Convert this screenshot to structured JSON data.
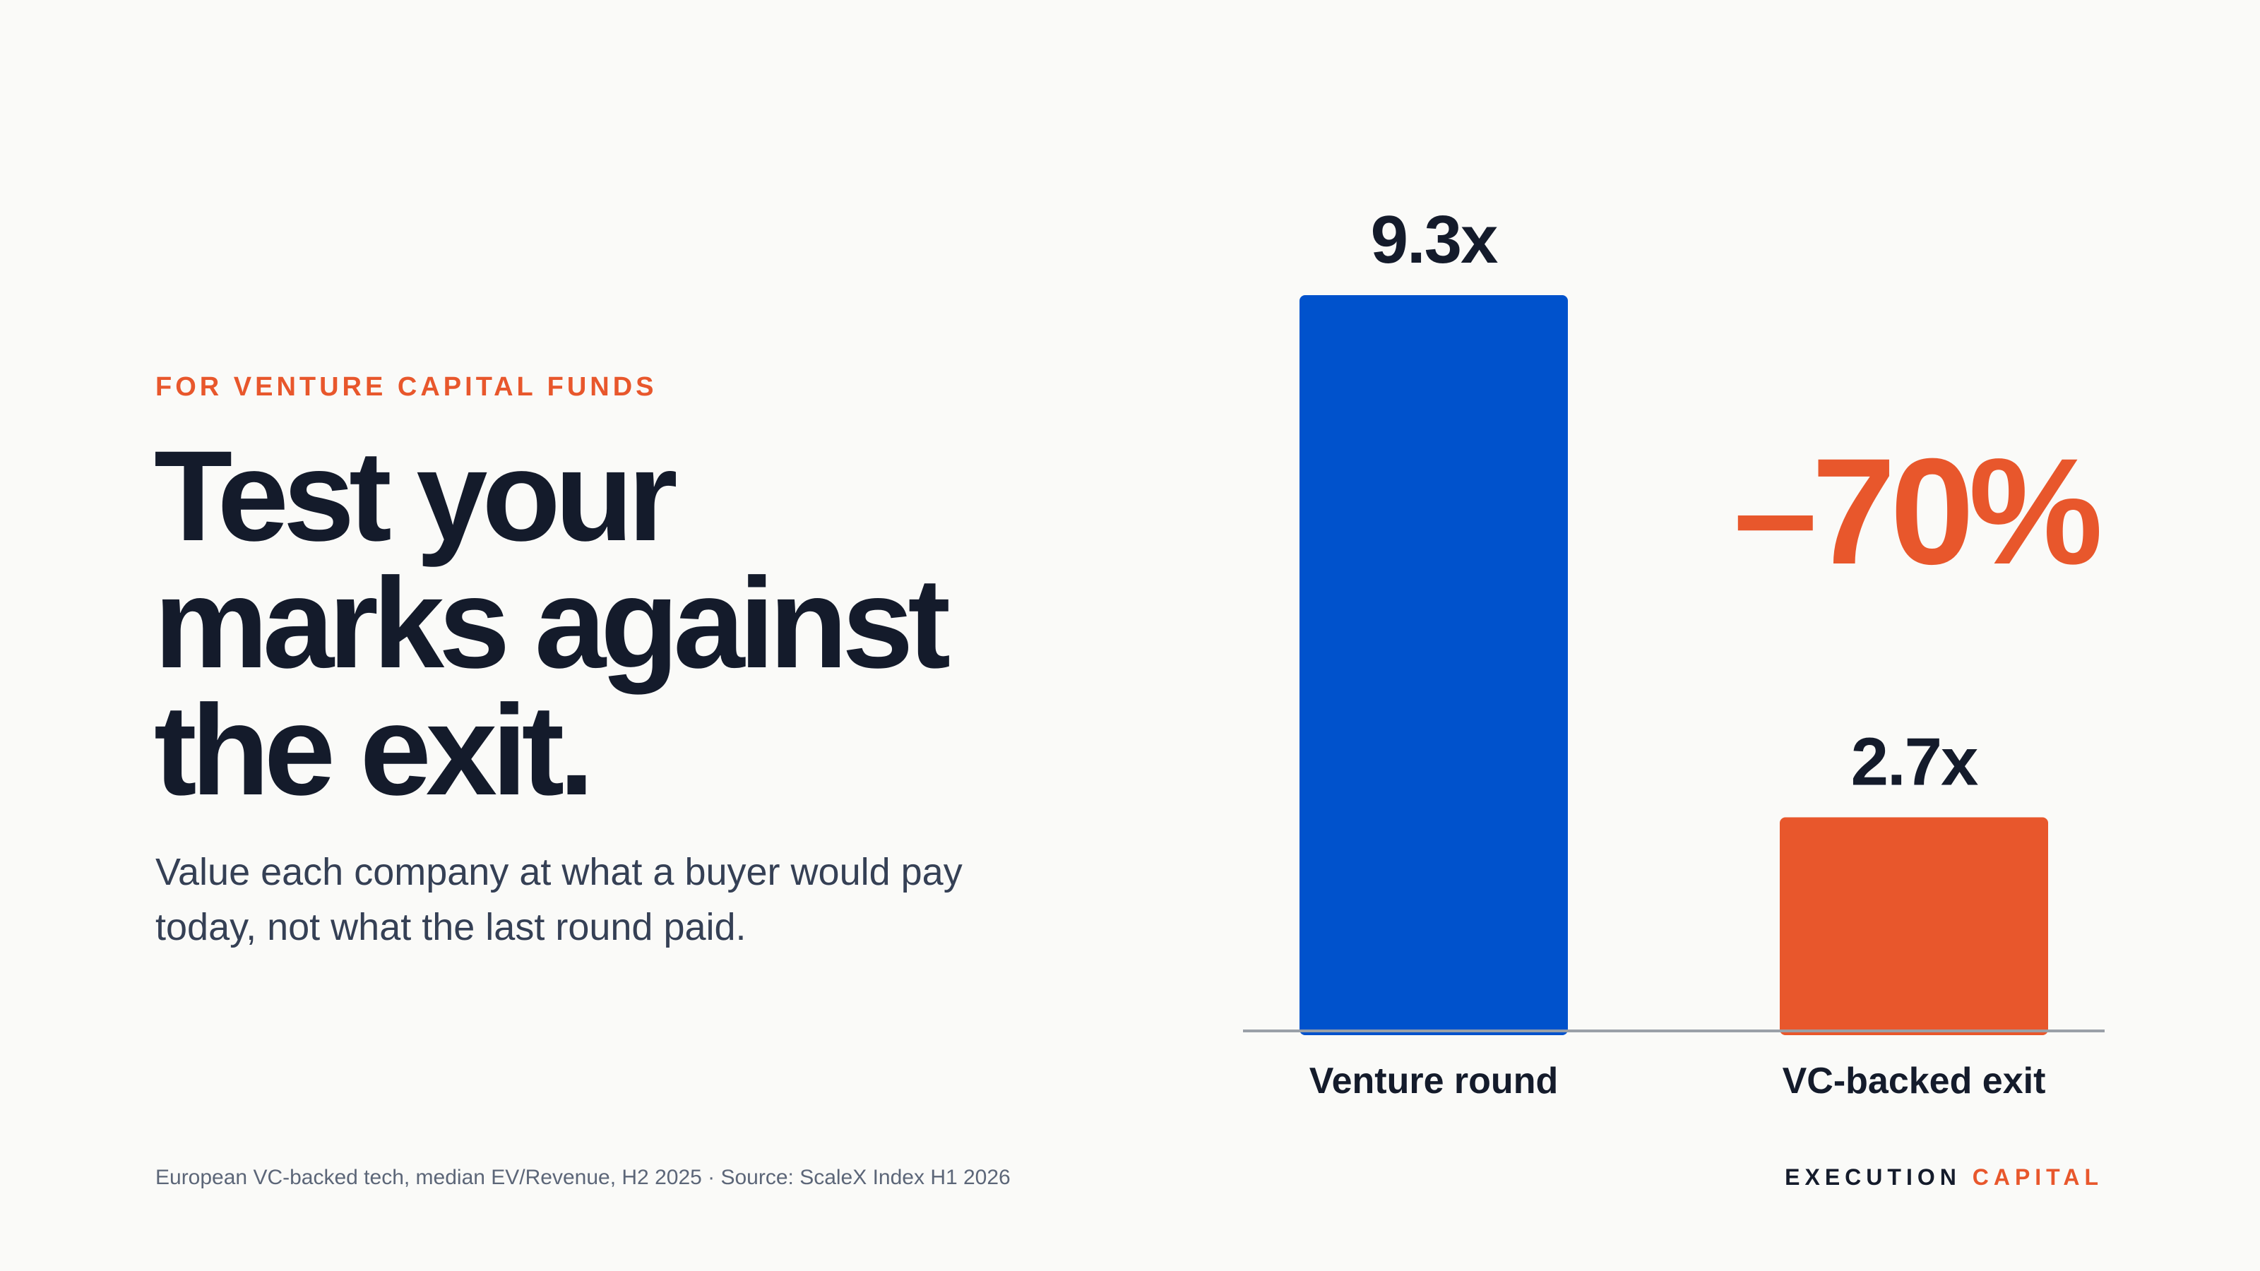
{
  "eyebrow": "FOR VENTURE CAPITAL FUNDS",
  "headline": {
    "line1": "Test your",
    "line2": "marks against",
    "line3": "the exit."
  },
  "subtitle": "Value each company at what a buyer would pay today, not what the last round paid.",
  "footnote": "European VC-backed tech, median EV/Revenue, H2 2025 · Source: ScaleX Index H1 2026",
  "brand": {
    "part1": "EXECUTION",
    "part2": "CAPITAL"
  },
  "colors": {
    "accent": "#E8572C",
    "headline": "#141B2B",
    "body": "#354055",
    "muted": "#5C6678",
    "blue_bar": "#0052CC",
    "orange_bar": "#E8572C",
    "baseline": "#9AA0A8",
    "background": "#FAFAF8"
  },
  "chart_data": {
    "type": "bar",
    "categories": [
      "Venture round",
      "VC-backed exit"
    ],
    "values": [
      9.3,
      2.7
    ],
    "value_labels": [
      "9.3x",
      "2.7x"
    ],
    "bar_colors": [
      "#0052CC",
      "#E8572C"
    ],
    "annotation": "–70%",
    "ylim": [
      0,
      9.3
    ],
    "grid": false
  }
}
